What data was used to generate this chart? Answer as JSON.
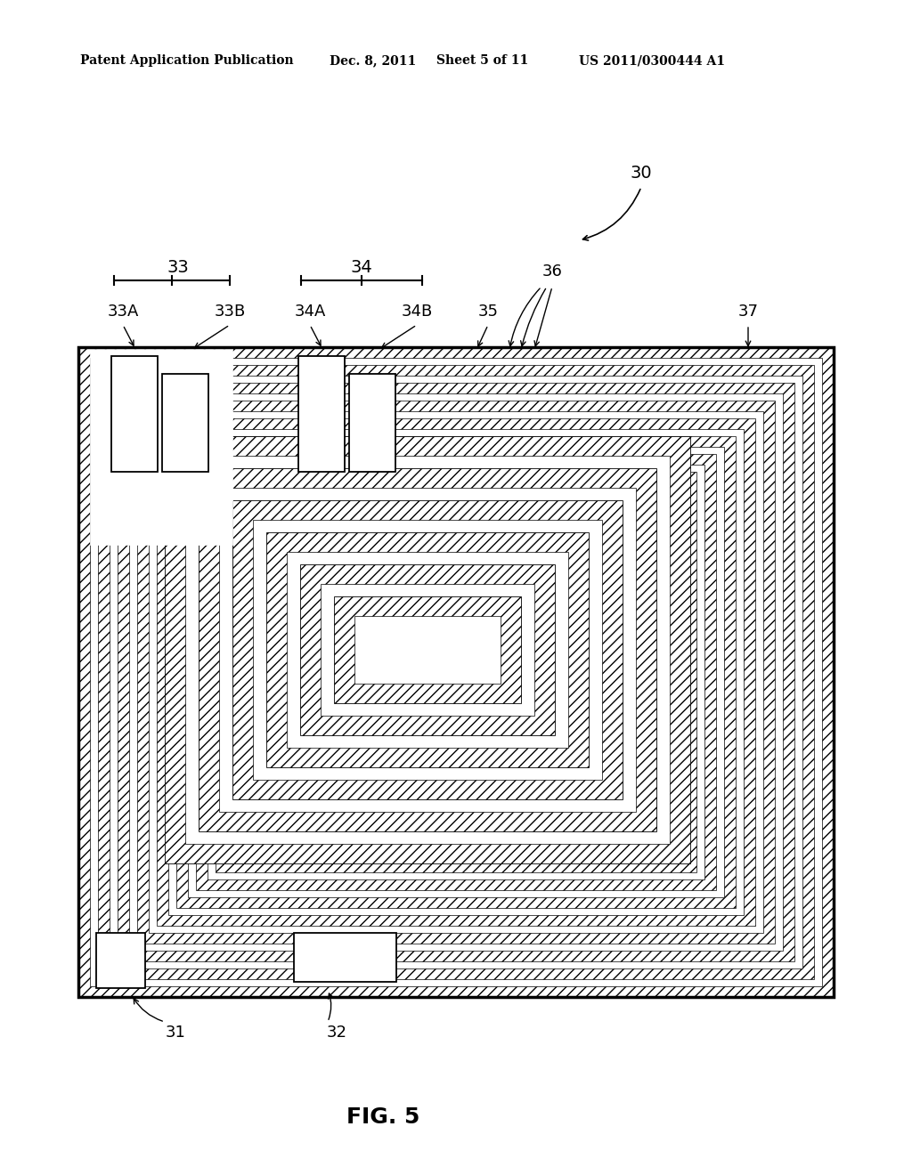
{
  "bg_color": "#ffffff",
  "line_color": "#000000",
  "header_text1": "Patent Application Publication",
  "header_text2": "Dec. 8, 2011",
  "header_text3": "Sheet 5 of 11",
  "header_text4": "US 2011/0300444 A1",
  "fig_label": "FIG. 5",
  "ref_30": "30",
  "ref_31": "31",
  "ref_32": "32",
  "ref_33": "33",
  "ref_33A": "33A",
  "ref_33B": "33B",
  "ref_34": "34",
  "ref_34A": "34A",
  "ref_34B": "34B",
  "ref_35": "35",
  "ref_36": "36",
  "ref_37": "37"
}
